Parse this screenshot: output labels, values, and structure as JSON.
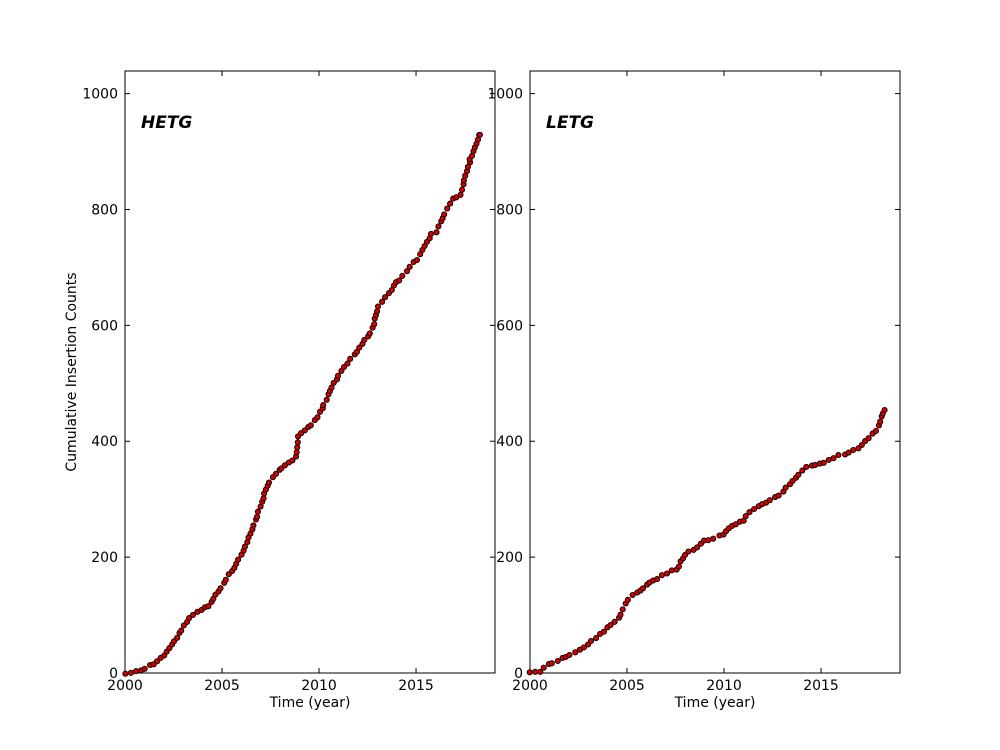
{
  "figure": {
    "background": "#ffffff",
    "axis_color": "#000000",
    "text_color": "#000000"
  },
  "chart_data": [
    {
      "type": "scatter",
      "panel": "left",
      "label": "HETG",
      "xlabel": "Time (year)",
      "ylabel": "Cumulative Insertion Counts",
      "xlim": [
        2000,
        2019.07
      ],
      "ylim": [
        0,
        1039
      ],
      "xticks": [
        2000,
        2005,
        2010,
        2015
      ],
      "yticks": [
        0,
        200,
        400,
        600,
        800,
        1000
      ],
      "grid": false,
      "legend": "none",
      "marker": {
        "shape": "circle",
        "fill": "#d40000",
        "edge": "#000000",
        "radius_px": 2.6
      },
      "series": [
        {
          "name": "HETG cumulative insertions",
          "points": [
            [
              2000.0,
              0
            ],
            [
              2000.5,
              1
            ],
            [
              2000.8,
              5
            ],
            [
              2001.2,
              12
            ],
            [
              2001.6,
              18
            ],
            [
              2002.0,
              30
            ],
            [
              2002.4,
              48
            ],
            [
              2002.8,
              68
            ],
            [
              2003.0,
              80
            ],
            [
              2003.3,
              95
            ],
            [
              2003.6,
              104
            ],
            [
              2004.0,
              110
            ],
            [
              2004.3,
              115
            ],
            [
              2004.6,
              130
            ],
            [
              2005.0,
              150
            ],
            [
              2005.5,
              176
            ],
            [
              2006.0,
              205
            ],
            [
              2006.5,
              242
            ],
            [
              2007.0,
              290
            ],
            [
              2007.4,
              330
            ],
            [
              2007.8,
              345
            ],
            [
              2008.3,
              360
            ],
            [
              2008.8,
              370
            ],
            [
              2008.9,
              408
            ],
            [
              2009.3,
              420
            ],
            [
              2009.7,
              432
            ],
            [
              2010.0,
              445
            ],
            [
              2010.5,
              482
            ],
            [
              2011.0,
              514
            ],
            [
              2011.5,
              536
            ],
            [
              2012.0,
              557
            ],
            [
              2012.5,
              580
            ],
            [
              2012.85,
              603
            ],
            [
              2013.0,
              630
            ],
            [
              2013.5,
              652
            ],
            [
              2014.0,
              675
            ],
            [
              2014.5,
              693
            ],
            [
              2015.0,
              712
            ],
            [
              2015.5,
              740
            ],
            [
              2015.8,
              757
            ],
            [
              2016.1,
              763
            ],
            [
              2016.5,
              795
            ],
            [
              2016.9,
              818
            ],
            [
              2017.3,
              826
            ],
            [
              2017.6,
              865
            ],
            [
              2017.9,
              898
            ],
            [
              2018.1,
              910
            ],
            [
              2018.3,
              930
            ]
          ]
        }
      ]
    },
    {
      "type": "scatter",
      "panel": "right",
      "label": "LETG",
      "xlabel": "Time (year)",
      "ylabel": "",
      "xlim": [
        2000,
        2019.07
      ],
      "ylim": [
        0,
        1039
      ],
      "xticks": [
        2000,
        2005,
        2010,
        2015
      ],
      "yticks": [
        0,
        200,
        400,
        600,
        800,
        1000
      ],
      "grid": false,
      "legend": "none",
      "marker": {
        "shape": "circle",
        "fill": "#d40000",
        "edge": "#000000",
        "radius_px": 2.6
      },
      "series": [
        {
          "name": "LETG cumulative insertions",
          "points": [
            [
              2000.0,
              0
            ],
            [
              2000.5,
              3
            ],
            [
              2001.0,
              16
            ],
            [
              2001.5,
              22
            ],
            [
              2002.0,
              30
            ],
            [
              2002.5,
              38
            ],
            [
              2003.0,
              50
            ],
            [
              2003.5,
              63
            ],
            [
              2004.0,
              78
            ],
            [
              2004.6,
              95
            ],
            [
              2005.0,
              126
            ],
            [
              2005.5,
              138
            ],
            [
              2006.0,
              152
            ],
            [
              2006.5,
              162
            ],
            [
              2007.0,
              172
            ],
            [
              2007.6,
              180
            ],
            [
              2007.75,
              193
            ],
            [
              2008.0,
              205
            ],
            [
              2008.5,
              215
            ],
            [
              2009.0,
              228
            ],
            [
              2009.4,
              232
            ],
            [
              2010.0,
              240
            ],
            [
              2010.3,
              252
            ],
            [
              2010.7,
              258
            ],
            [
              2011.0,
              264
            ],
            [
              2011.4,
              280
            ],
            [
              2012.0,
              292
            ],
            [
              2012.5,
              300
            ],
            [
              2013.0,
              312
            ],
            [
              2013.5,
              330
            ],
            [
              2014.0,
              347
            ],
            [
              2014.3,
              356
            ],
            [
              2015.0,
              362
            ],
            [
              2015.5,
              370
            ],
            [
              2016.0,
              376
            ],
            [
              2016.5,
              381
            ],
            [
              2017.0,
              390
            ],
            [
              2017.5,
              408
            ],
            [
              2017.8,
              416
            ],
            [
              2018.0,
              428
            ],
            [
              2018.15,
              442
            ],
            [
              2018.25,
              453
            ]
          ]
        }
      ]
    }
  ]
}
